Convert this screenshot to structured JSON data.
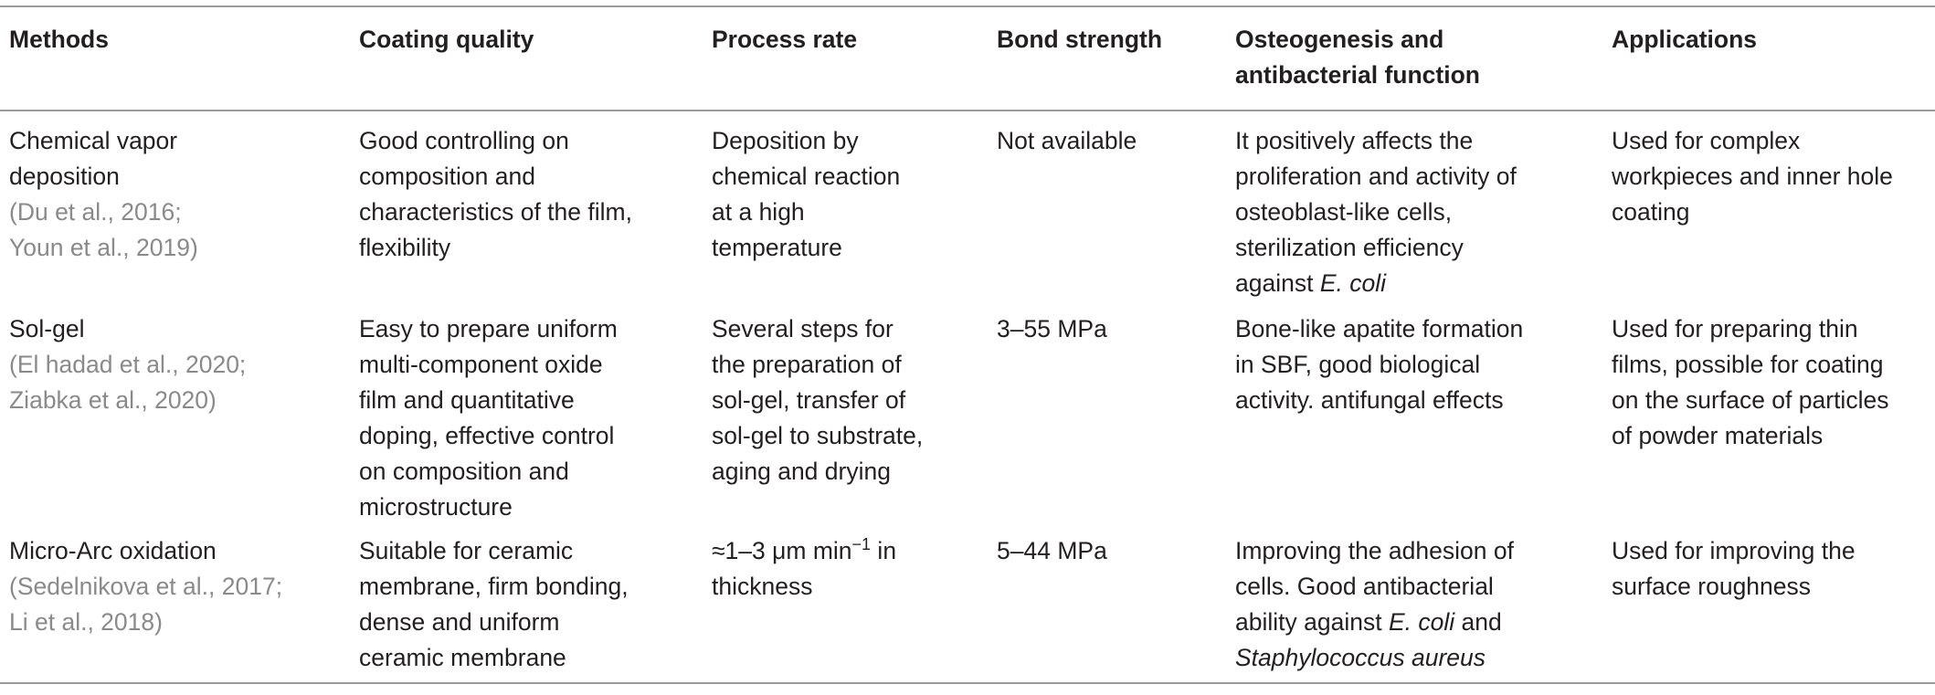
{
  "headers": {
    "methods": "Methods",
    "coating_quality": "Coating quality",
    "process_rate": "Process rate",
    "bond_strength": "Bond strength",
    "osteo_line1": "Osteogenesis and",
    "osteo_line2": "antibacterial function",
    "applications": "Applications"
  },
  "rows": [
    {
      "method_lines": [
        "Chemical vapor",
        "deposition"
      ],
      "refs": [
        "(Du et al., 2016;",
        "Youn et al., 2019)"
      ],
      "coating_lines": [
        "Good controlling on",
        "composition and",
        "characteristics of the film,",
        "flexibility"
      ],
      "rate_lines": [
        "Deposition by",
        "chemical reaction",
        "at a high",
        "temperature"
      ],
      "bond": "Not available",
      "osteo_lines": [
        "It positively affects the",
        "proliferation and activity of",
        "osteoblast-like cells,",
        "sterilization efficiency"
      ],
      "osteo_last_prefix": "against ",
      "osteo_last_italic": "E. coli",
      "app_lines": [
        "Used for complex",
        "workpieces and inner hole",
        "coating"
      ]
    },
    {
      "method_lines": [
        "Sol-gel"
      ],
      "refs": [
        "(El hadad et al., 2020;",
        "Ziabka et al., 2020)"
      ],
      "coating_lines": [
        "Easy to prepare uniform",
        "multi-component oxide",
        "film and quantitative",
        "doping, effective control",
        "on composition and",
        "microstructure"
      ],
      "rate_lines": [
        "Several steps for",
        "the preparation of",
        "sol-gel, transfer of",
        "sol-gel to substrate,",
        "aging and drying"
      ],
      "bond": "3–55 MPa",
      "osteo_lines": [
        "Bone-like apatite formation",
        "in SBF, good biological",
        "activity. antifungal effects"
      ],
      "app_lines": [
        "Used for preparing thin",
        "films, possible for coating",
        "on the surface of particles",
        "of powder materials"
      ]
    },
    {
      "method_lines": [
        "Micro-Arc oxidation"
      ],
      "refs": [
        "(Sedelnikova et al., 2017;",
        "Li et al., 2018)"
      ],
      "coating_lines": [
        "Suitable for ceramic",
        "membrane, firm bonding,",
        "dense and uniform",
        "ceramic membrane"
      ],
      "rate_prefix": "≈1–3 μm min",
      "rate_sup": "−1",
      "rate_suffix": " in",
      "rate_line2": "thickness",
      "bond": "5–44 MPa",
      "osteo_lines": [
        "Improving the adhesion of",
        "cells. Good antibacterial"
      ],
      "osteo_line3_prefix": "ability against ",
      "osteo_line3_italic": "E. coli",
      "osteo_line3_suffix": " and",
      "osteo_line4_italic": "Staphylococcus aureus",
      "app_lines": [
        "Used for improving the",
        "surface roughness"
      ]
    }
  ]
}
